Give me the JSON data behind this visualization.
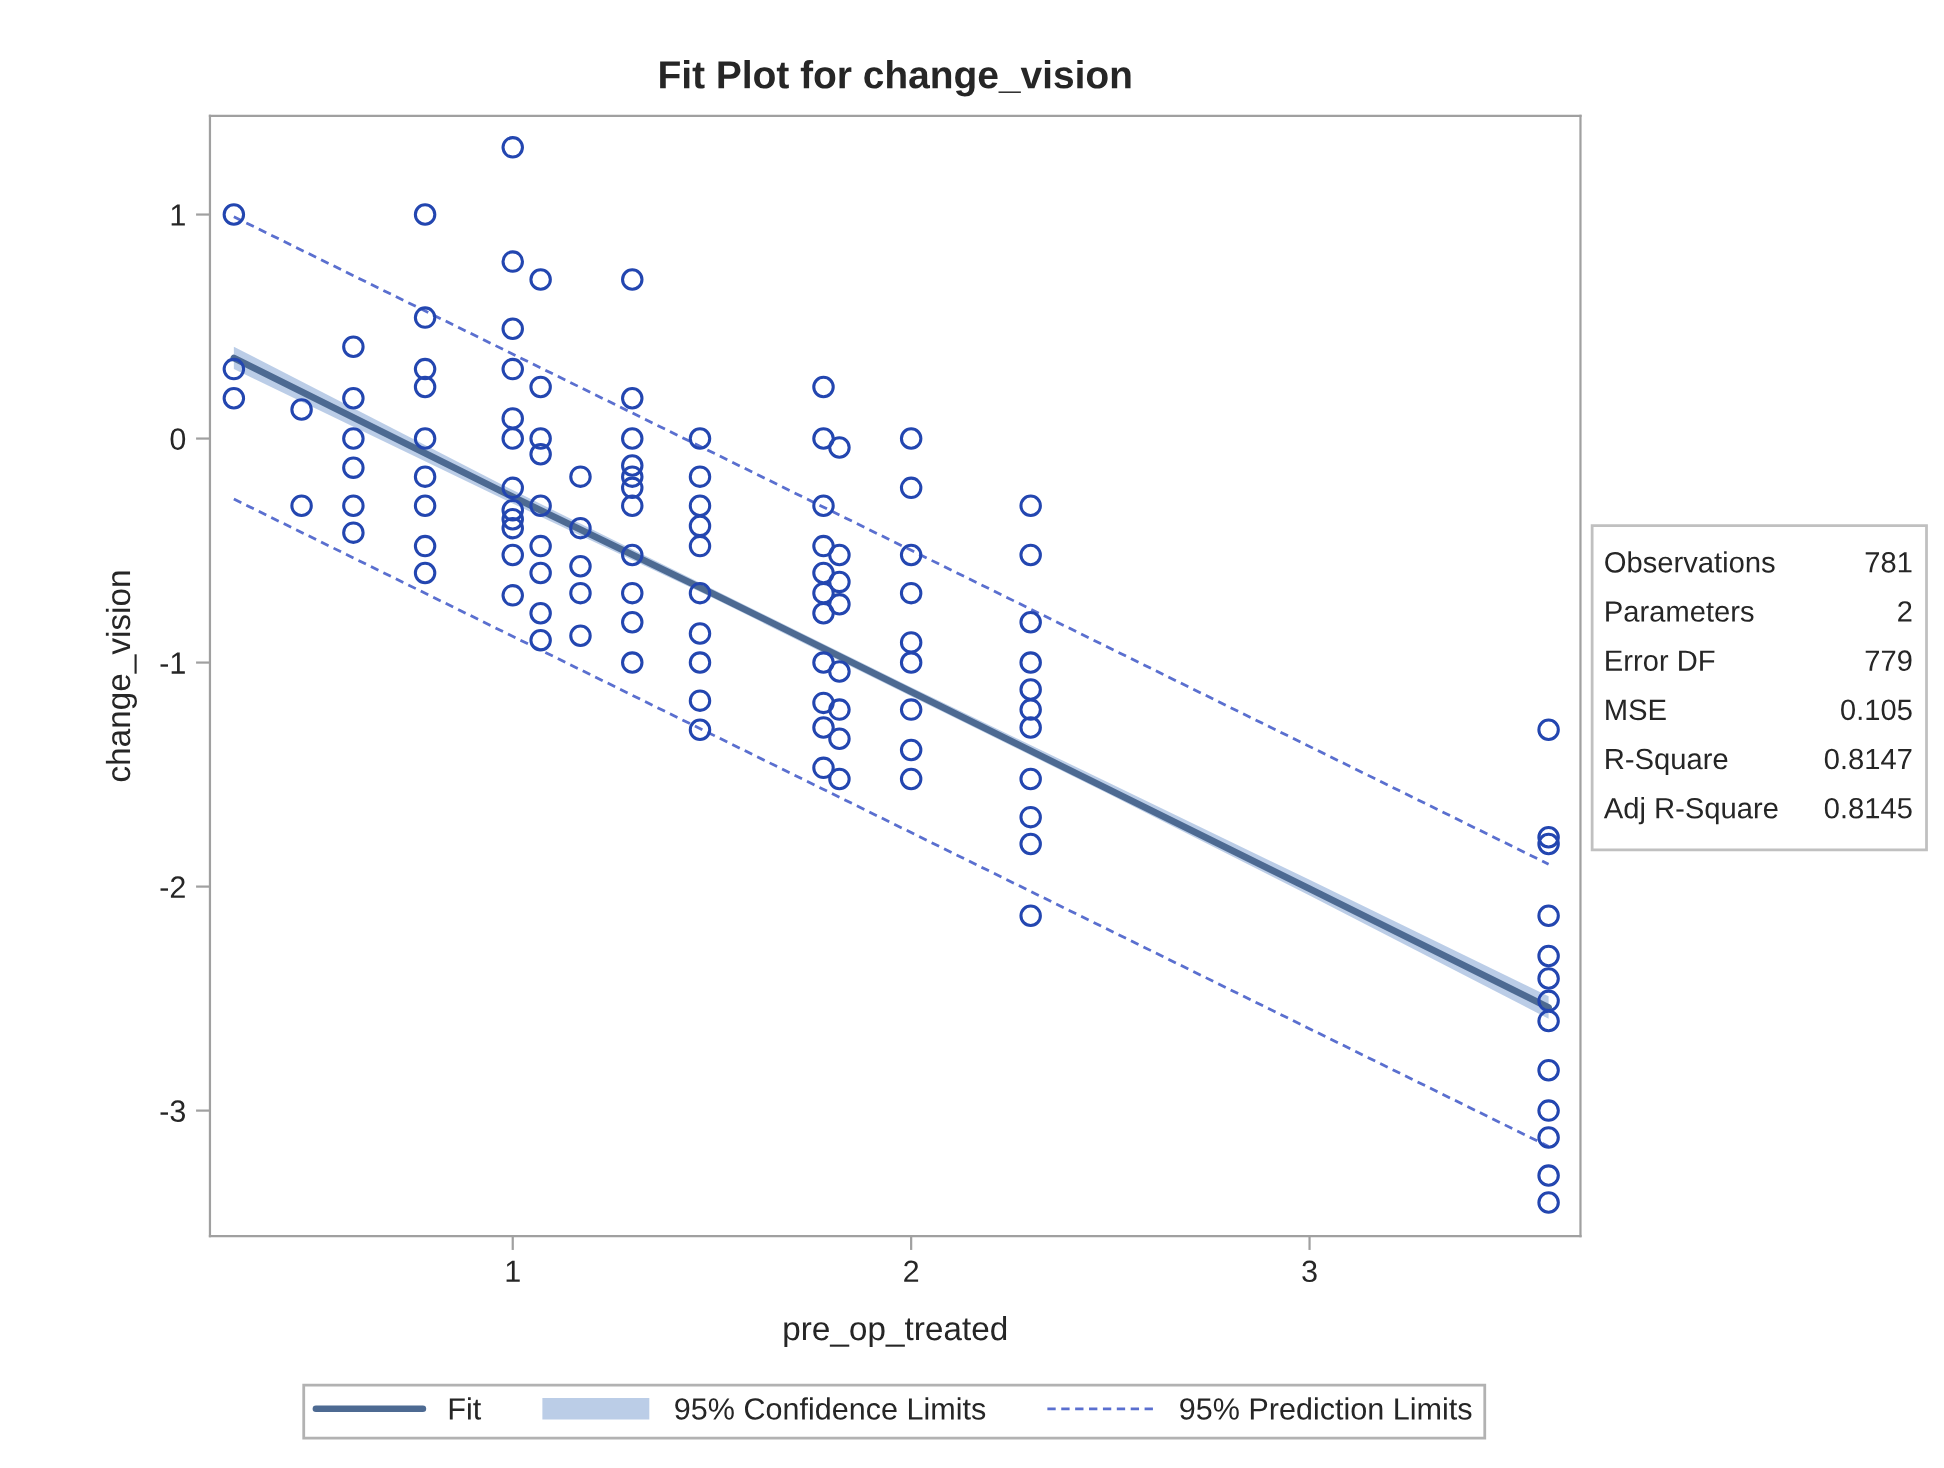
{
  "chart_data": {
    "type": "scatter",
    "title": "Fit Plot for change_vision",
    "xlabel": "pre_op_treated",
    "ylabel": "change_vision",
    "xlim": [
      0.24,
      3.68
    ],
    "xticks": [
      1,
      2,
      3
    ],
    "ylim": [
      -3.56,
      1.44
    ],
    "yticks": [
      -3,
      -2,
      -1,
      0,
      1
    ],
    "grid": false,
    "legend": "bottom",
    "series": [
      {
        "marker": "circle",
        "color": "#2346b0",
        "x": [
          0.3,
          0.3,
          0.3,
          0.47,
          0.47,
          0.6,
          0.6,
          0.6,
          0.6,
          0.6,
          0.6,
          0.78,
          0.78,
          0.78,
          0.78,
          0.78,
          0.78,
          0.78,
          0.78,
          0.78,
          1.0,
          1.0,
          1.0,
          1.0,
          1.0,
          1.0,
          1.0,
          1.0,
          1.0,
          1.0,
          1.0,
          1.0,
          1.07,
          1.07,
          1.07,
          1.07,
          1.07,
          1.07,
          1.07,
          1.07,
          1.07,
          1.17,
          1.17,
          1.17,
          1.17,
          1.17,
          1.3,
          1.3,
          1.3,
          1.3,
          1.3,
          1.3,
          1.3,
          1.3,
          1.3,
          1.3,
          1.3,
          1.47,
          1.47,
          1.47,
          1.47,
          1.47,
          1.47,
          1.47,
          1.47,
          1.47,
          1.47,
          1.78,
          1.78,
          1.78,
          1.78,
          1.78,
          1.78,
          1.78,
          1.78,
          1.78,
          1.78,
          1.78,
          1.82,
          1.82,
          1.82,
          1.82,
          1.82,
          1.82,
          1.82,
          1.82,
          2.0,
          2.0,
          2.0,
          2.0,
          2.0,
          2.0,
          2.0,
          2.0,
          2.0,
          2.3,
          2.3,
          2.3,
          2.3,
          2.3,
          2.3,
          2.3,
          2.3,
          2.3,
          2.3,
          2.3,
          3.6,
          3.6,
          3.6,
          3.6,
          3.6,
          3.6,
          3.6,
          3.6,
          3.6,
          3.6,
          3.6,
          3.6,
          3.6
        ],
        "values": [
          1.0,
          0.31,
          0.18,
          0.13,
          -0.3,
          0.41,
          0.18,
          0.0,
          -0.13,
          -0.3,
          -0.42,
          1.0,
          0.54,
          0.31,
          0.23,
          0.0,
          -0.17,
          -0.3,
          -0.48,
          -0.6,
          1.3,
          0.79,
          0.49,
          0.31,
          0.09,
          0.0,
          -0.22,
          -0.32,
          -0.36,
          -0.4,
          -0.52,
          -0.7,
          0.71,
          0.23,
          0.0,
          -0.07,
          -0.3,
          -0.48,
          -0.6,
          -0.78,
          -0.9,
          -0.17,
          -0.4,
          -0.57,
          -0.69,
          -0.88,
          0.71,
          0.18,
          0.0,
          -0.12,
          -0.17,
          -0.22,
          -0.3,
          -0.52,
          -0.69,
          -0.82,
          -1.0,
          0.0,
          -0.17,
          -0.3,
          -0.39,
          -0.48,
          -0.69,
          -0.87,
          -1.0,
          -1.17,
          -1.3,
          0.23,
          0.0,
          -0.3,
          -0.48,
          -0.6,
          -0.69,
          -0.78,
          -1.0,
          -1.18,
          -1.29,
          -1.47,
          -0.04,
          -0.52,
          -0.64,
          -0.74,
          -1.04,
          -1.21,
          -1.34,
          -1.52,
          0.0,
          -0.22,
          -0.52,
          -0.69,
          -0.91,
          -1.0,
          -1.21,
          -1.39,
          -1.52,
          -0.3,
          -0.52,
          -0.82,
          -1.0,
          -1.12,
          -1.21,
          -1.29,
          -1.52,
          -1.69,
          -1.81,
          -2.13,
          -1.3,
          -1.78,
          -1.81,
          -2.13,
          -2.31,
          -2.41,
          -2.51,
          -2.6,
          -2.82,
          -3.0,
          -3.12,
          -3.29,
          -3.41
        ]
      },
      {
        "type": "line",
        "name": "Fit",
        "color": "#4d6a92",
        "x": [
          0.3,
          1.0,
          1.5,
          2.0,
          2.5,
          3.0,
          3.6
        ],
        "values": [
          0.36,
          -0.26,
          -0.69,
          -1.13,
          -1.57,
          -2.01,
          -2.54
        ],
        "lower": [
          0.31,
          -0.29,
          -0.71,
          -1.15,
          -1.59,
          -2.04,
          -2.59
        ],
        "upper": [
          0.41,
          -0.23,
          -0.67,
          -1.11,
          -1.54,
          -1.97,
          -2.49
        ],
        "line_style": "solid"
      },
      {
        "type": "line",
        "name": "95% Prediction Limits",
        "color": "#5a6fcf",
        "x": [
          0.3,
          3.6
        ],
        "values": [
          0.99,
          -1.9
        ],
        "line_style": "dashed"
      },
      {
        "type": "line",
        "color": "#5a6fcf",
        "x": [
          0.3,
          3.6
        ],
        "values": [
          -0.27,
          -3.16
        ],
        "line_style": "dashed"
      }
    ],
    "annotations": [
      "95% Confidence Limits",
      "Observations",
      "781",
      "Parameters",
      "2",
      "Error DF",
      "779",
      "MSE",
      "0.105",
      "R-Square",
      "0.8147",
      "Adj R-Square",
      "0.8145"
    ]
  }
}
